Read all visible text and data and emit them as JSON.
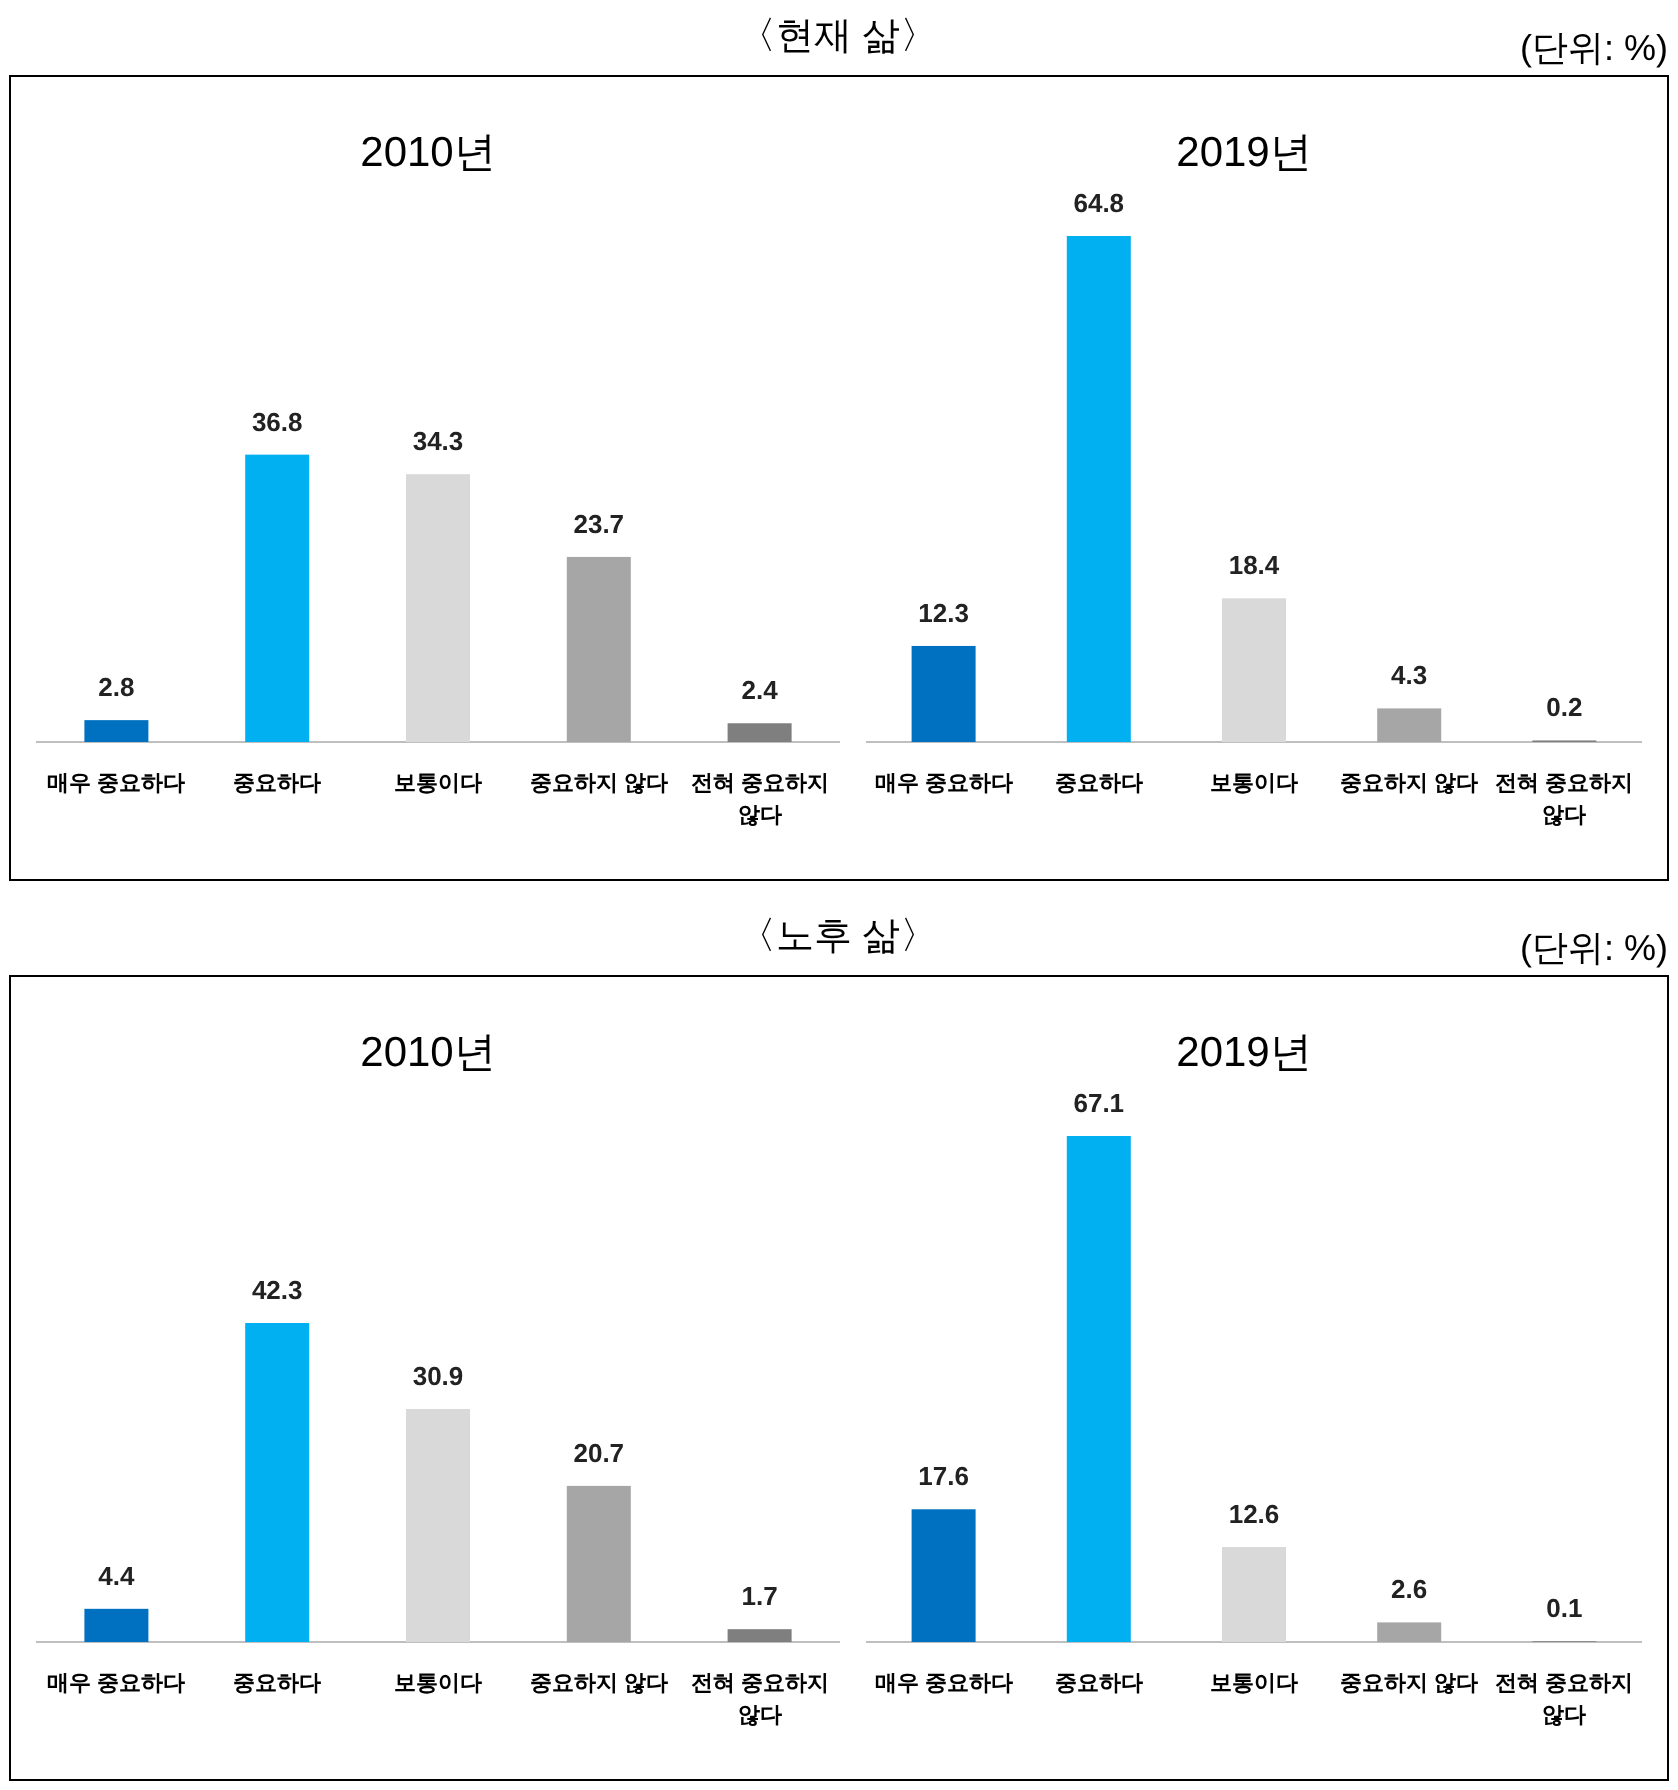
{
  "chart_data": [
    {
      "type": "bar",
      "title": "2010년",
      "annotations": [
        "〈현재 삶〉"
      ],
      "categories": [
        "매우 중요하다",
        "중요하다",
        "보통이다",
        "중요하지 않다",
        "전혀 중요하지 않다"
      ],
      "values": [
        2.8,
        36.8,
        34.3,
        23.7,
        2.4
      ],
      "colors": [
        "#0070c0",
        "#00b0f0",
        "#d9d9d9",
        "#a6a6a6",
        "#7f7f7f"
      ],
      "data_labels": true
    },
    {
      "type": "bar",
      "title": "2019년",
      "annotations": [
        "(단위: %)"
      ],
      "categories": [
        "매우 중요하다",
        "중요하다",
        "보통이다",
        "중요하지 않다",
        "전혀 중요하지 않다"
      ],
      "values": [
        12.3,
        64.8,
        18.4,
        4.3,
        0.2
      ],
      "colors": [
        "#0070c0",
        "#00b0f0",
        "#d9d9d9",
        "#a6a6a6",
        "#7f7f7f"
      ],
      "data_labels": true
    },
    {
      "type": "bar",
      "title": "2010년",
      "annotations": [
        "〈노후 삶〉"
      ],
      "categories": [
        "매우 중요하다",
        "중요하다",
        "보통이다",
        "중요하지 않다",
        "전혀 중요하지 않다"
      ],
      "values": [
        4.4,
        42.3,
        30.9,
        20.7,
        1.7
      ],
      "colors": [
        "#0070c0",
        "#00b0f0",
        "#d9d9d9",
        "#a6a6a6",
        "#7f7f7f"
      ],
      "data_labels": true
    },
    {
      "type": "bar",
      "title": "2019년",
      "annotations": [
        "(단위: %)"
      ],
      "categories": [
        "매우 중요하다",
        "중요하다",
        "보통이다",
        "중요하지 않다",
        "전혀 중요하지 않다"
      ],
      "values": [
        17.6,
        67.1,
        12.6,
        2.6,
        0.1
      ],
      "colors": [
        "#0070c0",
        "#00b0f0",
        "#d9d9d9",
        "#a6a6a6",
        "#7f7f7f"
      ],
      "data_labels": true
    }
  ]
}
